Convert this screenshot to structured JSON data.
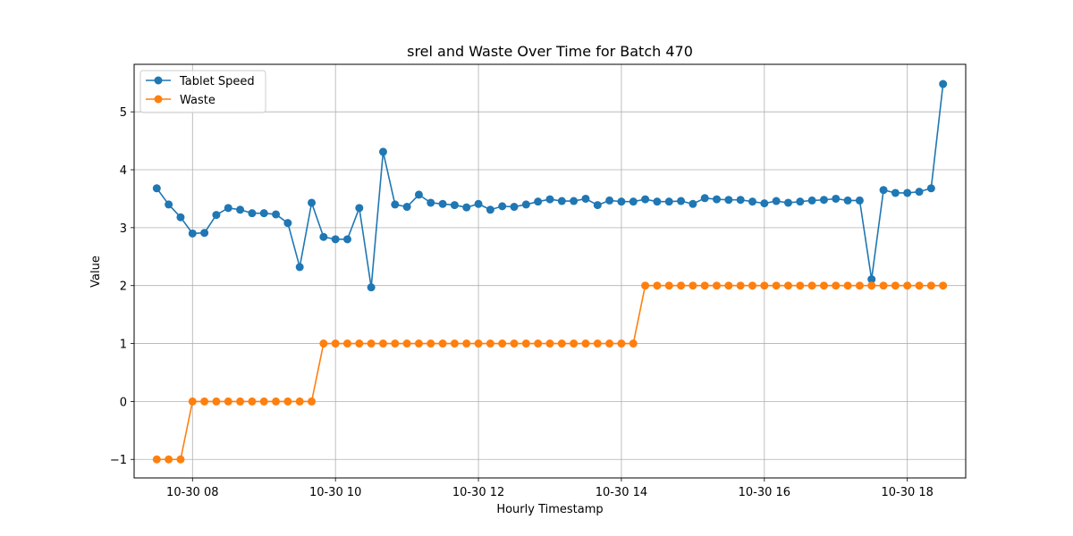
{
  "chart_data": {
    "type": "line",
    "title": "srel and Waste Over Time for Batch 470",
    "xlabel": "Hourly Timestamp",
    "ylabel": "Value",
    "xlim": [
      "10-30 07:11",
      "10-30 18:49"
    ],
    "ylim": [
      -1.32,
      5.82
    ],
    "grid": true,
    "legend_position": "top-left",
    "x_ticks": [
      {
        "time": "10-30 08:00",
        "label": "10-30 08"
      },
      {
        "time": "10-30 10:00",
        "label": "10-30 10"
      },
      {
        "time": "10-30 12:00",
        "label": "10-30 12"
      },
      {
        "time": "10-30 14:00",
        "label": "10-30 14"
      },
      {
        "time": "10-30 16:00",
        "label": "10-30 16"
      },
      {
        "time": "10-30 18:00",
        "label": "10-30 18"
      }
    ],
    "y_ticks": [
      {
        "value": -1,
        "label": "−1"
      },
      {
        "value": 0,
        "label": "0"
      },
      {
        "value": 1,
        "label": "1"
      },
      {
        "value": 2,
        "label": "2"
      },
      {
        "value": 3,
        "label": "3"
      },
      {
        "value": 4,
        "label": "4"
      },
      {
        "value": 5,
        "label": "5"
      }
    ],
    "x_times": [
      "10-30 07:30",
      "10-30 07:40",
      "10-30 07:50",
      "10-30 08:00",
      "10-30 08:10",
      "10-30 08:20",
      "10-30 08:30",
      "10-30 08:40",
      "10-30 08:50",
      "10-30 09:00",
      "10-30 09:10",
      "10-30 09:20",
      "10-30 09:30",
      "10-30 09:40",
      "10-30 09:50",
      "10-30 10:00",
      "10-30 10:10",
      "10-30 10:20",
      "10-30 10:30",
      "10-30 10:40",
      "10-30 10:50",
      "10-30 11:00",
      "10-30 11:10",
      "10-30 11:20",
      "10-30 11:30",
      "10-30 11:40",
      "10-30 11:50",
      "10-30 12:00",
      "10-30 12:10",
      "10-30 12:20",
      "10-30 12:30",
      "10-30 12:40",
      "10-30 12:50",
      "10-30 13:00",
      "10-30 13:10",
      "10-30 13:20",
      "10-30 13:30",
      "10-30 13:40",
      "10-30 13:50",
      "10-30 14:00",
      "10-30 14:10",
      "10-30 14:20",
      "10-30 14:30",
      "10-30 14:40",
      "10-30 14:50",
      "10-30 15:00",
      "10-30 15:10",
      "10-30 15:20",
      "10-30 15:30",
      "10-30 15:40",
      "10-30 15:50",
      "10-30 16:00",
      "10-30 16:10",
      "10-30 16:20",
      "10-30 16:30",
      "10-30 16:40",
      "10-30 16:50",
      "10-30 17:00",
      "10-30 17:10",
      "10-30 17:20",
      "10-30 17:30",
      "10-30 17:40",
      "10-30 17:50",
      "10-30 18:00",
      "10-30 18:10",
      "10-30 18:20",
      "10-30 18:30"
    ],
    "series": [
      {
        "name": "Tablet Speed",
        "color": "#1f77b4",
        "values": [
          3.68,
          3.4,
          3.18,
          2.9,
          2.91,
          3.22,
          3.34,
          3.31,
          3.25,
          3.25,
          3.23,
          3.08,
          2.32,
          3.43,
          2.84,
          2.8,
          2.8,
          3.34,
          1.97,
          4.31,
          3.4,
          3.36,
          3.57,
          3.43,
          3.41,
          3.39,
          3.35,
          3.41,
          3.31,
          3.37,
          3.36,
          3.4,
          3.45,
          3.49,
          3.46,
          3.46,
          3.5,
          3.39,
          3.47,
          3.45,
          3.45,
          3.49,
          3.45,
          3.45,
          3.46,
          3.41,
          3.51,
          3.49,
          3.48,
          3.48,
          3.45,
          3.42,
          3.46,
          3.43,
          3.45,
          3.47,
          3.48,
          3.5,
          3.47,
          3.47,
          2.11,
          3.65,
          3.6,
          3.6,
          3.62,
          3.68,
          5.48
        ]
      },
      {
        "name": "Waste",
        "color": "#ff7f0e",
        "values": [
          -1,
          -1,
          -1,
          0,
          0,
          0,
          0,
          0,
          0,
          0,
          0,
          0,
          0,
          0,
          1,
          1,
          1,
          1,
          1,
          1,
          1,
          1,
          1,
          1,
          1,
          1,
          1,
          1,
          1,
          1,
          1,
          1,
          1,
          1,
          1,
          1,
          1,
          1,
          1,
          1,
          1,
          2,
          2,
          2,
          2,
          2,
          2,
          2,
          2,
          2,
          2,
          2,
          2,
          2,
          2,
          2,
          2,
          2,
          2,
          2,
          2,
          2,
          2,
          2,
          2,
          2,
          2
        ]
      }
    ]
  }
}
